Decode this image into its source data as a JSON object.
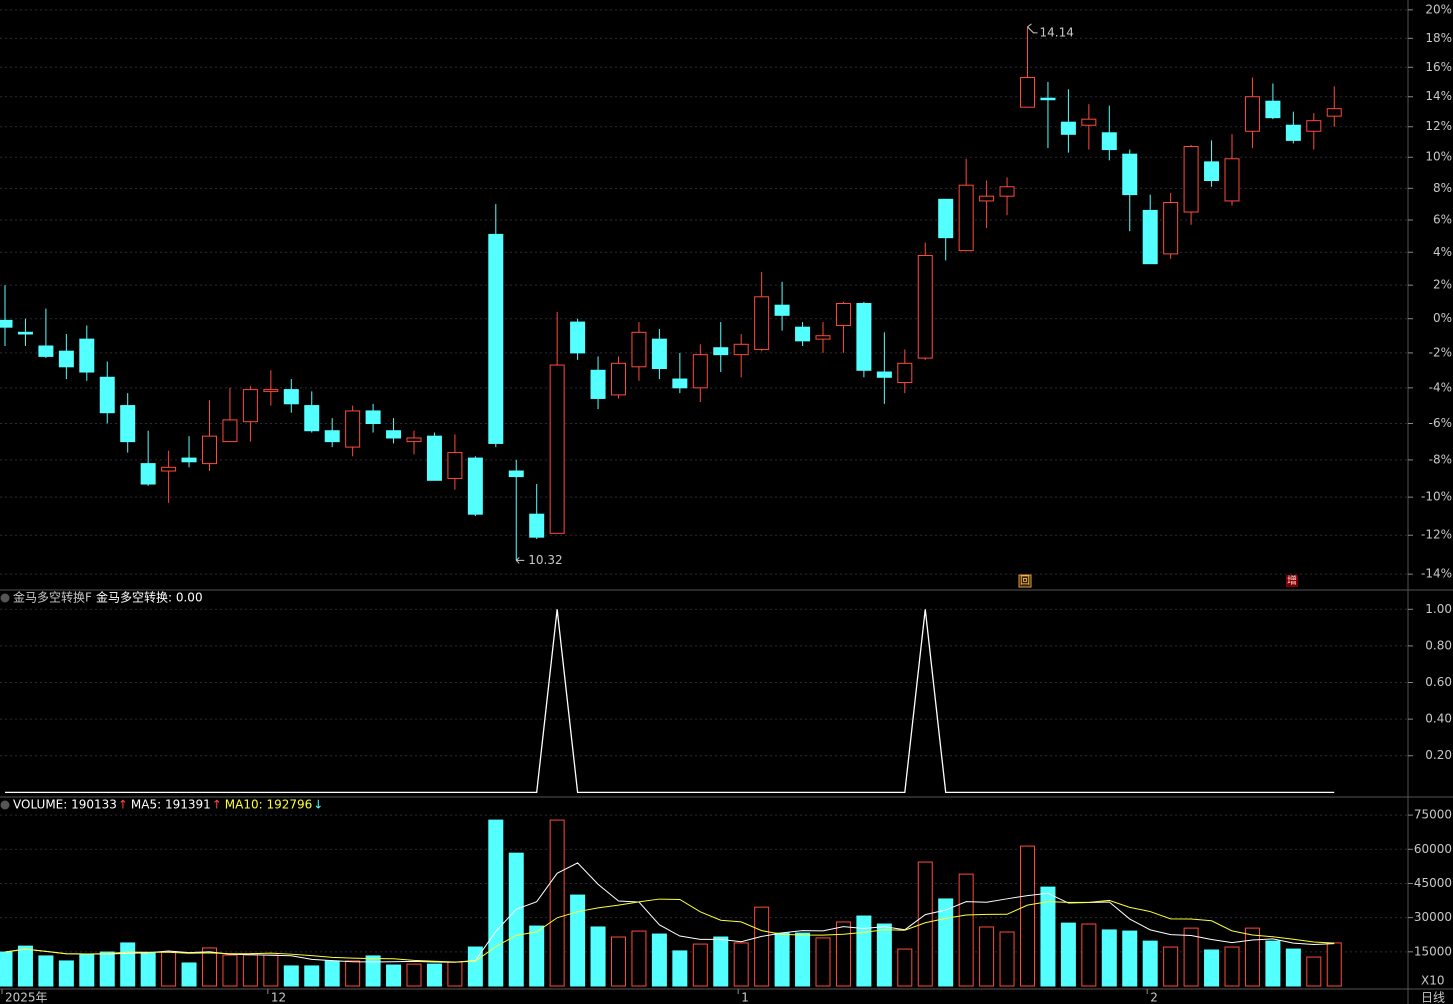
{
  "chart_data": [
    {
      "type": "candlestick",
      "up_color": "#ff4a3a",
      "down_color": "#54ffff",
      "log": true,
      "grid": true,
      "ylim": [
        -14.8,
        20.7
      ],
      "yticks": [
        {
          "value": 20,
          "label": "20%"
        },
        {
          "value": 18,
          "label": "18%"
        },
        {
          "value": 16,
          "label": "16%"
        },
        {
          "value": 14,
          "label": "14%"
        },
        {
          "value": 12,
          "label": "12%"
        },
        {
          "value": 10,
          "label": "10%"
        },
        {
          "value": 8,
          "label": "8%"
        },
        {
          "value": 6,
          "label": "6%"
        },
        {
          "value": 4,
          "label": "4%"
        },
        {
          "value": 2,
          "label": "2%"
        },
        {
          "value": 0,
          "label": "0%"
        },
        {
          "value": -2,
          "label": "-2%"
        },
        {
          "value": -4,
          "label": "-4%"
        },
        {
          "value": -6,
          "label": "-6%"
        },
        {
          "value": -8,
          "label": "-8%"
        },
        {
          "value": -10,
          "label": "-10%"
        },
        {
          "value": -12,
          "label": "-12%"
        },
        {
          "value": -14,
          "label": "-14%"
        }
      ],
      "open": [
        -0.1,
        -0.8,
        -1.6,
        -1.9,
        -1.2,
        -3.4,
        -5,
        -8.2,
        -8.6,
        -7.9,
        -8.2,
        -7,
        -5.9,
        -4.2,
        -4.1,
        -5,
        -6.4,
        -7.3,
        -5.3,
        -6.4,
        -7,
        -6.7,
        -9,
        -7.9,
        5.1,
        -8.6,
        -10.9,
        -11.9,
        -0.2,
        -3,
        -4.4,
        -2.8,
        -1.2,
        -3.5,
        -4,
        -1.7,
        -2.1,
        -1.8,
        0.8,
        -0.5,
        -1.2,
        -0.4,
        0.9,
        -3.1,
        -3.7,
        -2.3,
        7.3,
        4.1,
        7.2,
        7.5,
        13.3,
        13.9,
        12.3,
        12.1,
        11.6,
        10.2,
        6.6,
        3.9,
        6.5,
        9.7,
        7.2,
        11.7,
        13.7,
        12.1,
        11.7,
        12.7
      ],
      "close": [
        -0.5,
        -0.9,
        -2.2,
        -2.8,
        -3.1,
        -5.4,
        -7,
        -9.3,
        -8.4,
        -8.1,
        -6.7,
        -5.8,
        -4.1,
        -4.1,
        -4.9,
        -6.4,
        -7,
        -5.3,
        -6,
        -6.8,
        -6.8,
        -9.1,
        -7.6,
        -10.9,
        -7.1,
        -8.9,
        -12.1,
        -2.7,
        -2,
        -4.6,
        -2.6,
        -0.8,
        -2.9,
        -4,
        -2.1,
        -2.1,
        -1.5,
        1.3,
        0.2,
        -1.3,
        -1,
        0.9,
        -3,
        -3.4,
        -2.6,
        3.8,
        4.9,
        8.2,
        7.5,
        8.1,
        15.3,
        13.8,
        11.5,
        12.5,
        10.5,
        7.6,
        3.3,
        7.1,
        10.7,
        8.5,
        9.9,
        14,
        12.6,
        11.1,
        12.4,
        13.2
      ],
      "high": [
        2,
        0,
        0.6,
        -0.9,
        -0.4,
        -2.5,
        -4.3,
        -6.4,
        -7.5,
        -6.7,
        -4.7,
        -4,
        -3.9,
        -3,
        -3.5,
        -4.2,
        -5.7,
        -5,
        -4.9,
        -5.7,
        -6.4,
        -6.5,
        -6.6,
        -7.8,
        7,
        -8,
        -9.3,
        0.4,
        0,
        -2.2,
        -2.2,
        -0.2,
        -0.6,
        -2,
        -1.5,
        -0.2,
        -0.9,
        2.8,
        2.2,
        -0.2,
        -0.2,
        1,
        1,
        -0.8,
        -1.8,
        4.6,
        7.3,
        9.9,
        8.5,
        8.7,
        18.8,
        15,
        14.5,
        13.5,
        13.4,
        10.5,
        7.6,
        7.7,
        10.8,
        11.1,
        11.5,
        15.3,
        14.9,
        13,
        12.9,
        14.7
      ],
      "low": [
        -1.6,
        -1.6,
        -2.3,
        -3.5,
        -3.6,
        -6,
        -7.6,
        -9.4,
        -10.3,
        -8.4,
        -8.6,
        -7,
        -7,
        -5,
        -5.4,
        -6.5,
        -7.3,
        -7.8,
        -6.5,
        -7.1,
        -7.7,
        -9.1,
        -9.6,
        -11,
        -7.3,
        -13.3,
        -12.2,
        -11.9,
        -2.4,
        -5.2,
        -4.6,
        -3.6,
        -3.5,
        -4.3,
        -4.8,
        -3.1,
        -3.4,
        -1.9,
        -0.7,
        -1.6,
        -2,
        -2,
        -3.4,
        -4.9,
        -4.3,
        -2.4,
        3.5,
        4.1,
        5.5,
        6.3,
        13.3,
        10.6,
        10.3,
        10.5,
        9.8,
        5.3,
        3.3,
        3.6,
        5.7,
        8.1,
        6.9,
        10.6,
        12.5,
        10.9,
        10.5,
        12
      ],
      "high_label": "14.14",
      "low_label": "10.32",
      "signals": [
        "回",
        "增"
      ]
    },
    {
      "type": "line",
      "title": "金马多空转换F",
      "label": "金马多空转换: 0.00",
      "color": "#ffffff",
      "ylim": [
        -0.02,
        1.1
      ],
      "yticks": [
        {
          "value": 1,
          "label": "1.00"
        },
        {
          "value": 0.8,
          "label": "0.80"
        },
        {
          "value": 0.6,
          "label": "0.60"
        },
        {
          "value": 0.4,
          "label": "0.40"
        },
        {
          "value": 0.2,
          "label": "0.20"
        }
      ],
      "values": [
        0,
        0,
        0,
        0,
        0,
        0,
        0,
        0,
        0,
        0,
        0,
        0,
        0,
        0,
        0,
        0,
        0,
        0,
        0,
        0,
        0,
        0,
        0,
        0,
        0,
        0,
        0,
        1,
        0,
        0,
        0,
        0,
        0,
        0,
        0,
        0,
        0,
        0,
        0,
        0,
        0,
        0,
        0,
        0,
        0,
        1,
        0,
        0,
        0,
        0,
        0,
        0,
        0,
        0,
        0,
        0,
        0,
        0,
        0,
        0,
        0,
        0,
        0,
        0,
        0,
        0
      ]
    },
    {
      "type": "volume",
      "ylim": [
        0,
        82500
      ],
      "yticks": [
        75000,
        60000,
        45000,
        30000,
        15000
      ],
      "values": [
        14900,
        17500,
        13200,
        11000,
        13600,
        14900,
        18900,
        14500,
        14900,
        10100,
        16700,
        13600,
        13600,
        13600,
        8800,
        8800,
        11000,
        11000,
        13200,
        9200,
        9600,
        9600,
        10500,
        17100,
        72800,
        58300,
        26300,
        72800,
        39900,
        25900,
        21500,
        24100,
        22800,
        15400,
        18400,
        21500,
        18900,
        34600,
        23200,
        23200,
        21100,
        28100,
        30700,
        27200,
        16200,
        54400,
        38200,
        49100,
        25900,
        23700,
        61400,
        43400,
        27600,
        27200,
        24600,
        24100,
        19700,
        17100,
        25400,
        15800,
        17100,
        25400,
        19700,
        16200,
        12700,
        18900
      ],
      "header": [
        {
          "text": "VOLUME: 190133",
          "arrow": "↑",
          "color": "#ffffff",
          "arrow_color": "#ff4a3a"
        },
        {
          "text": "MA5: 191391",
          "arrow": "↑",
          "color": "#ffffff",
          "arrow_color": "#ff4a3a",
          "window": 5
        },
        {
          "text": "MA10: 192796",
          "arrow": "↓",
          "color": "#ffff33",
          "arrow_color": "#54ffff",
          "window": 10
        }
      ],
      "categories": [
        "2025年",
        null,
        null,
        null,
        null,
        null,
        null,
        null,
        null,
        null,
        null,
        null,
        null,
        "12",
        null,
        null,
        null,
        null,
        null,
        null,
        null,
        null,
        null,
        null,
        null,
        null,
        null,
        null,
        null,
        null,
        null,
        null,
        null,
        null,
        null,
        null,
        "1",
        null,
        null,
        null,
        null,
        null,
        null,
        null,
        null,
        null,
        null,
        null,
        null,
        null,
        null,
        null,
        null,
        null,
        null,
        null,
        "2",
        null,
        null,
        null,
        null,
        null,
        null,
        null,
        null,
        null
      ],
      "multiplier_label": "X10",
      "period_label": "日线"
    }
  ]
}
